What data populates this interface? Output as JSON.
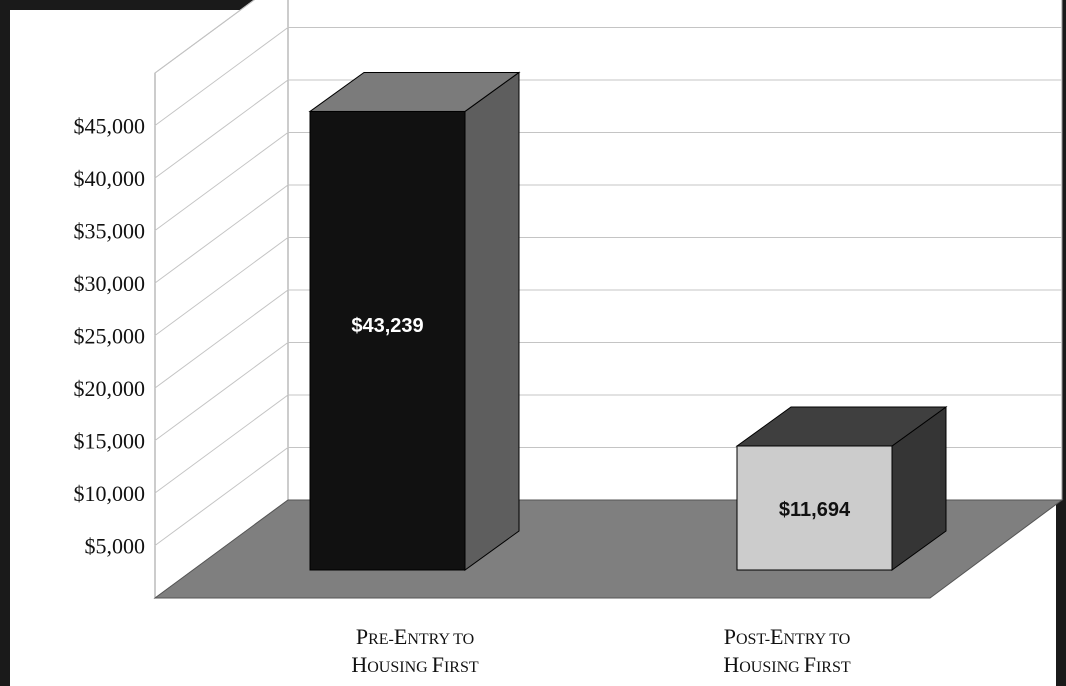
{
  "chart_data": {
    "type": "bar",
    "categories": [
      {
        "lines": [
          {
            "first": "P",
            "rest": "re-",
            "first2": "E",
            "rest2": "ntry to"
          },
          {
            "first": "H",
            "rest": "ousing ",
            "first2": "F",
            "rest2": "irst"
          }
        ],
        "text": "Pre-Entry to Housing First"
      },
      {
        "lines": [
          {
            "first": "P",
            "rest": "ost-",
            "first2": "E",
            "rest2": "ntry to"
          },
          {
            "first": "H",
            "rest": "ousing ",
            "first2": "F",
            "rest2": "irst"
          }
        ],
        "text": "Post-Entry to Housing First"
      }
    ],
    "values": [
      43239,
      11694
    ],
    "data_labels": [
      "$43,239",
      "$11,694"
    ],
    "yticks": [
      "$5,000",
      "$10,000",
      "$15,000",
      "$20,000",
      "$25,000",
      "$30,000",
      "$35,000",
      "$40,000",
      "$45,000"
    ],
    "ylim": [
      0,
      50000
    ],
    "grid": true,
    "three_d": true,
    "bar_colors": {
      "front": [
        "#111111",
        "#cccccc"
      ],
      "side": [
        "#5e5e5e",
        "#353535"
      ],
      "top": [
        "#7b7b7b",
        "#3f3f3f"
      ]
    },
    "floor_color": "#7f7f7f",
    "title": "",
    "xlabel": "",
    "ylabel": ""
  }
}
